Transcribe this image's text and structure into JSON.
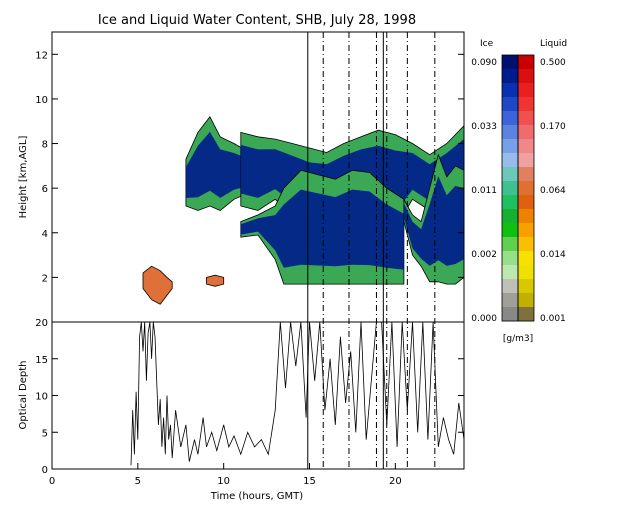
{
  "chart_data": {
    "title": "Ice and Liquid Water Content, SHB, July 28, 1998",
    "top_panel": {
      "type": "heatmap",
      "ylabel": "Height [km,AGL]",
      "ylim": [
        0,
        13
      ],
      "yticks": [
        2,
        4,
        6,
        8,
        10,
        12
      ],
      "xlim": [
        0,
        24
      ],
      "cloud_layers": [
        {
          "kind": "ice",
          "t": [
            7.8,
            8.5,
            9.2,
            9.8,
            10.6,
            11.5
          ],
          "base": [
            5.2,
            5.0,
            5.2,
            5.0,
            5.5,
            5.8
          ],
          "top": [
            7.3,
            8.5,
            9.2,
            8.3,
            8.0,
            7.6
          ]
        },
        {
          "kind": "ice",
          "t": [
            11.0,
            12.0,
            13.0,
            14.0,
            15.0,
            16.0,
            17.0,
            18.0,
            19.0,
            20.0,
            21.0,
            22.0,
            23.0,
            24.0
          ],
          "base": [
            5.2,
            5.0,
            5.5,
            4.8,
            4.0,
            4.5,
            4.8,
            5.0,
            4.5,
            4.2,
            5.5,
            5.0,
            5.5,
            5.3
          ],
          "top": [
            8.5,
            8.3,
            8.2,
            8.0,
            7.8,
            7.6,
            8.0,
            8.3,
            8.6,
            8.4,
            8.0,
            7.5,
            8.0,
            8.8
          ]
        },
        {
          "kind": "ice",
          "t": [
            11.0,
            12.0,
            13.0,
            13.5,
            14.5,
            15.5,
            16.5,
            17.5,
            18.5,
            19.5,
            20.5
          ],
          "base": [
            3.8,
            3.9,
            2.8,
            1.7,
            1.7,
            1.7,
            1.7,
            1.7,
            1.7,
            1.7,
            1.7
          ],
          "top": [
            4.5,
            4.8,
            5.2,
            6.0,
            6.8,
            6.6,
            6.4,
            6.8,
            6.7,
            6.0,
            5.5
          ]
        },
        {
          "kind": "ice",
          "t": [
            20.5,
            21.0,
            21.5,
            22.0,
            22.5,
            23.0,
            23.5,
            24.0
          ],
          "base": [
            4.5,
            3.0,
            2.5,
            1.8,
            1.8,
            1.7,
            1.7,
            2.0
          ],
          "top": [
            5.5,
            4.8,
            4.5,
            6.0,
            7.5,
            6.5,
            7.0,
            6.8
          ]
        },
        {
          "kind": "liquid",
          "t": [
            5.3,
            5.8,
            6.3,
            6.7,
            7.0
          ],
          "base": [
            1.5,
            1.0,
            0.8,
            1.2,
            1.5
          ],
          "top": [
            2.2,
            2.5,
            2.3,
            2.0,
            1.8
          ]
        },
        {
          "kind": "liquid",
          "t": [
            9.0,
            9.5,
            10.0
          ],
          "base": [
            1.7,
            1.6,
            1.7
          ],
          "top": [
            2.0,
            2.1,
            2.0
          ]
        }
      ]
    },
    "bottom_panel": {
      "type": "line",
      "ylabel": "Optical Depth",
      "ylim": [
        0,
        20
      ],
      "yticks": [
        0,
        5,
        10,
        15,
        20
      ],
      "xlabel": "Time (hours, GMT)",
      "xlim": [
        0,
        24
      ],
      "xticks": [
        0,
        5,
        10,
        15,
        20
      ],
      "x": [
        4.6,
        4.7,
        4.8,
        4.9,
        5.0,
        5.1,
        5.2,
        5.3,
        5.4,
        5.5,
        5.6,
        5.7,
        5.8,
        5.9,
        6.0,
        6.1,
        6.2,
        6.3,
        6.4,
        6.5,
        6.6,
        6.7,
        6.8,
        6.9,
        7.0,
        7.2,
        7.5,
        7.8,
        8.0,
        8.3,
        8.5,
        8.8,
        9.0,
        9.3,
        9.6,
        10.0,
        10.3,
        10.6,
        11.0,
        11.4,
        11.8,
        12.2,
        12.6,
        13.0,
        13.3,
        13.6,
        13.9,
        14.2,
        14.5,
        14.8,
        15.0,
        15.3,
        15.6,
        15.9,
        16.2,
        16.5,
        16.8,
        17.1,
        17.4,
        17.7,
        18.0,
        18.3,
        18.6,
        18.9,
        19.2,
        19.5,
        19.8,
        20.1,
        20.4,
        20.7,
        21.0,
        21.3,
        21.6,
        21.9,
        22.2,
        22.5,
        22.8,
        23.1,
        23.4,
        23.7,
        24.0
      ],
      "y": [
        0.5,
        8.0,
        2.0,
        10.5,
        4.0,
        18.0,
        20.0,
        16.0,
        20.0,
        12.0,
        18.5,
        20.0,
        15.0,
        20.0,
        18.0,
        12.0,
        6.0,
        9.5,
        3.0,
        7.0,
        2.0,
        10.0,
        4.0,
        6.0,
        1.5,
        8.0,
        3.0,
        6.0,
        1.0,
        4.0,
        2.0,
        7.0,
        3.0,
        5.0,
        2.5,
        6.0,
        3.0,
        4.5,
        2.0,
        5.0,
        3.0,
        4.0,
        2.0,
        8.0,
        20.0,
        11.0,
        20.0,
        14.0,
        20.0,
        7.0,
        20.0,
        12.0,
        20.0,
        8.0,
        15.0,
        6.0,
        18.0,
        9.0,
        16.0,
        5.0,
        20.0,
        4.0,
        12.0,
        20.0,
        20.0,
        6.0,
        20.0,
        3.0,
        20.0,
        8.0,
        20.0,
        5.0,
        20.0,
        4.0,
        20.0,
        3.0,
        7.0,
        4.0,
        2.0,
        9.0,
        4.0
      ]
    },
    "vertical_markers": {
      "solid": [
        14.9,
        19.3
      ],
      "dashed": [
        15.8,
        17.3,
        18.9,
        19.5,
        20.7,
        22.3
      ]
    },
    "colorbar": {
      "ice_label": "Ice",
      "liquid_label": "Liquid",
      "ice_ticks": [
        "0.090",
        "0.033",
        "0.011",
        "0.002",
        "0.000"
      ],
      "liquid_ticks": [
        "0.500",
        "0.170",
        "0.064",
        "0.014",
        "0.001"
      ],
      "units": "[g/m3]",
      "ice_colors": [
        "#001070",
        "#001b8c",
        "#0830b0",
        "#1e48c8",
        "#3c64d8",
        "#5a84e0",
        "#78a0e8",
        "#96bced",
        "#6cc8b8",
        "#40c090",
        "#20c060",
        "#18b030",
        "#10c010",
        "#60d050",
        "#98e088",
        "#bce8b0",
        "#c0c0b8",
        "#a0a098",
        "#888888"
      ],
      "liquid_colors": [
        "#c80000",
        "#d81010",
        "#e82020",
        "#f03434",
        "#f05050",
        "#f06c6c",
        "#f08888",
        "#f0a0a0",
        "#e08060",
        "#e07030",
        "#e06010",
        "#f08000",
        "#f8a000",
        "#f8c000",
        "#f8e000",
        "#f0e000",
        "#d8c800",
        "#c0b000",
        "#807040"
      ]
    }
  }
}
